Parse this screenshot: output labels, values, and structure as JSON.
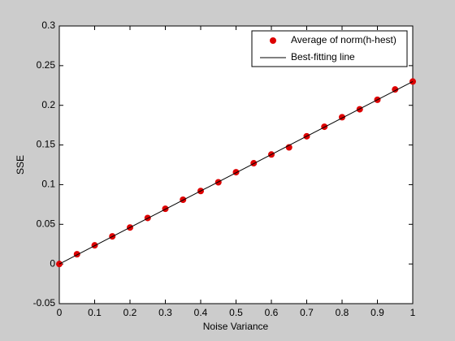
{
  "chart_data": {
    "type": "scatter",
    "xlabel": "Noise Variance",
    "ylabel": "SSE",
    "xlim": [
      0,
      1
    ],
    "xticks": [
      0,
      0.1,
      0.2,
      0.3,
      0.4,
      0.5,
      0.6,
      0.7,
      0.8,
      0.9,
      1
    ],
    "ylim": [
      -0.05,
      0.3
    ],
    "yticks": [
      -0.05,
      0,
      0.05,
      0.1,
      0.15,
      0.2,
      0.25,
      0.3
    ],
    "legend": "northeast",
    "series": [
      {
        "name": "Average of norm(h-hest)",
        "color": "#dd0000",
        "style": "markers",
        "x": [
          0,
          0.05,
          0.1,
          0.15,
          0.2,
          0.25,
          0.3,
          0.35,
          0.4,
          0.45,
          0.5,
          0.55,
          0.6,
          0.65,
          0.7,
          0.75,
          0.8,
          0.85,
          0.9,
          0.95,
          1
        ],
        "values": [
          0,
          0.0123,
          0.0235,
          0.0348,
          0.046,
          0.058,
          0.0696,
          0.081,
          0.092,
          0.103,
          0.1157,
          0.127,
          0.138,
          0.147,
          0.161,
          0.173,
          0.185,
          0.195,
          0.207,
          0.22,
          0.23
        ]
      },
      {
        "name": "Best-fitting line",
        "color": "#000000",
        "style": "line",
        "x": [
          0,
          1
        ],
        "values": [
          0,
          0.23
        ]
      }
    ]
  }
}
